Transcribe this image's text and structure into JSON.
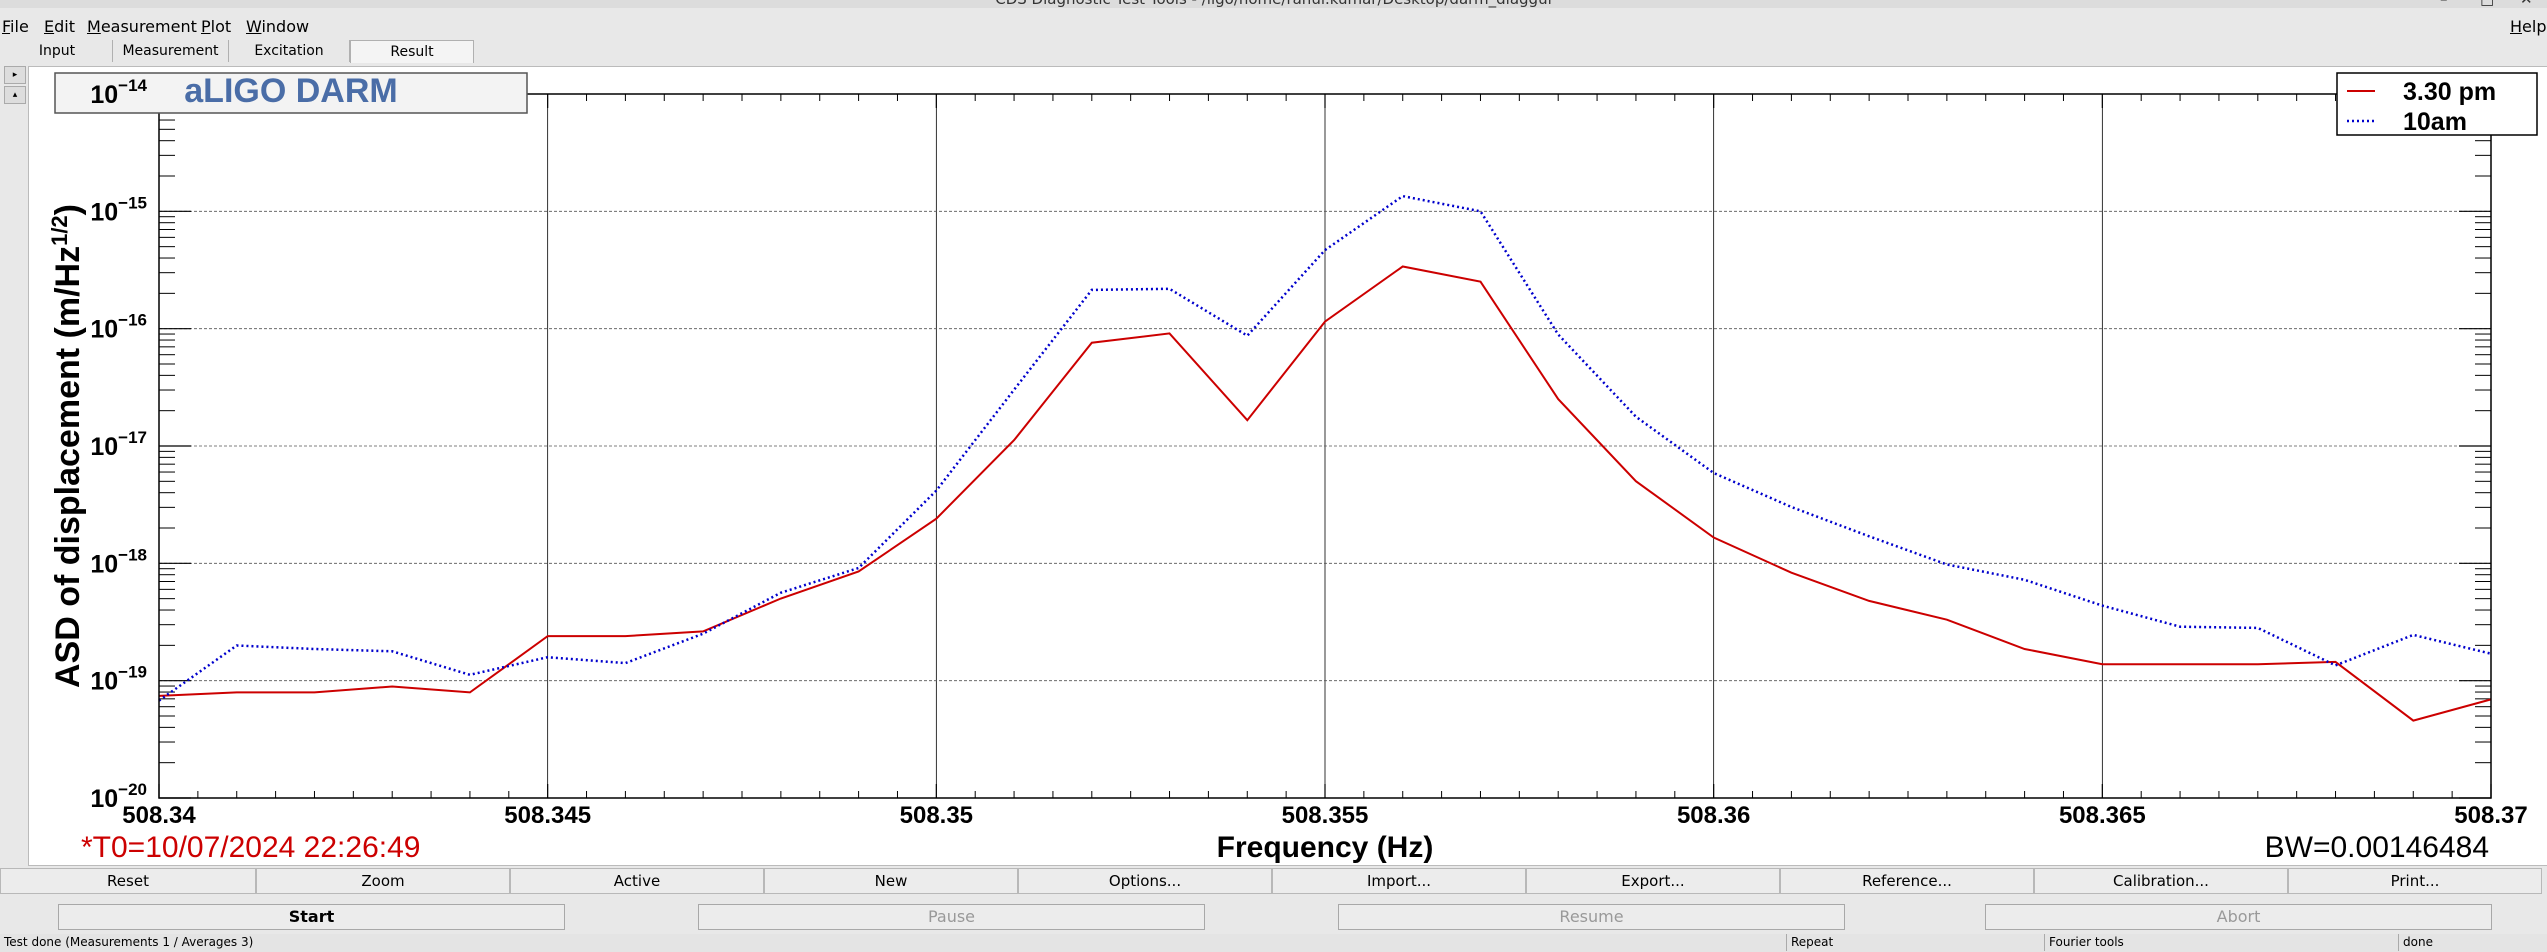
{
  "window": {
    "title": "CDS Diagnostic Test Tools - /ligo/home/rahul.kumar/Desktop/darm_diaggui",
    "controls": [
      "–",
      "□",
      "✕"
    ]
  },
  "menu": [
    "File",
    "Edit",
    "Measurement",
    "Plot",
    "Window"
  ],
  "menu_help": "Help",
  "tabs": [
    "Input",
    "Measurement",
    "Excitation",
    "Result"
  ],
  "active_tab": "Result",
  "plot": {
    "title_box": "aLIGO DARM",
    "t0_label": "*T0=10/07/2024 22:26:49",
    "bw_label": "BW=0.00146484"
  },
  "chart_data": {
    "type": "line",
    "xlabel": "Frequency (Hz)",
    "ylabel": "ASD of displacement (m/Hz",
    "ylabel_sup": "1/2",
    "ylabel_close": ")",
    "xlim": [
      508.34,
      508.37
    ],
    "ylim_log10": [
      -20,
      -14
    ],
    "yscale": "log",
    "grid": true,
    "legend_position": "top-right",
    "x_ticks": [
      "508.34",
      "508.345",
      "508.35",
      "508.355",
      "508.36",
      "508.365",
      "508.37"
    ],
    "y_tick_exponents": [
      "-14",
      "-15",
      "-16",
      "-17",
      "-18",
      "-19",
      "-20"
    ],
    "y_tick_base": "10",
    "x": [
      508.34,
      508.341,
      508.342,
      508.343,
      508.344,
      508.345,
      508.346,
      508.347,
      508.348,
      508.349,
      508.35,
      508.351,
      508.352,
      508.353,
      508.354,
      508.355,
      508.356,
      508.357,
      508.358,
      508.359,
      508.36,
      508.361,
      508.362,
      508.363,
      508.364,
      508.365,
      508.366,
      508.367,
      508.368,
      508.369,
      508.37
    ],
    "series": [
      {
        "name": "3.30 pm",
        "color": "#cc0000",
        "dash": "solid",
        "log10_values": [
          -19.13,
          -19.1,
          -19.1,
          -19.05,
          -19.1,
          -18.62,
          -18.62,
          -18.58,
          -18.3,
          -18.07,
          -17.62,
          -16.95,
          -16.12,
          -16.04,
          -16.78,
          -15.94,
          -15.47,
          -15.6,
          -16.6,
          -17.3,
          -17.78,
          -18.08,
          -18.32,
          -18.48,
          -18.73,
          -18.86,
          -18.86,
          -18.86,
          -18.84,
          -19.34,
          -19.16
        ]
      },
      {
        "name": "10am",
        "color": "#0000cc",
        "dash": "dotted",
        "log10_values": [
          -19.17,
          -18.7,
          -18.73,
          -18.75,
          -18.95,
          -18.8,
          -18.85,
          -18.6,
          -18.25,
          -18.04,
          -17.38,
          -16.52,
          -15.67,
          -15.66,
          -16.06,
          -15.33,
          -14.87,
          -15.0,
          -16.05,
          -16.75,
          -17.23,
          -17.52,
          -17.77,
          -18.01,
          -18.14,
          -18.36,
          -18.54,
          -18.55,
          -18.87,
          -18.61,
          -18.77
        ]
      }
    ]
  },
  "buttons_row1": [
    "Reset",
    "Zoom",
    "Active",
    "New",
    "Options...",
    "Import...",
    "Export...",
    "Reference...",
    "Calibration...",
    "Print..."
  ],
  "buttons_row2": [
    {
      "label": "Start",
      "enabled": true
    },
    {
      "label": "Pause",
      "enabled": false
    },
    {
      "label": "Resume",
      "enabled": false
    },
    {
      "label": "Abort",
      "enabled": false
    }
  ],
  "status": {
    "message": "Test done (Measurements 1 / Averages 3)",
    "mode": "Repeat",
    "tool": "Fourier tools",
    "state": "done"
  }
}
